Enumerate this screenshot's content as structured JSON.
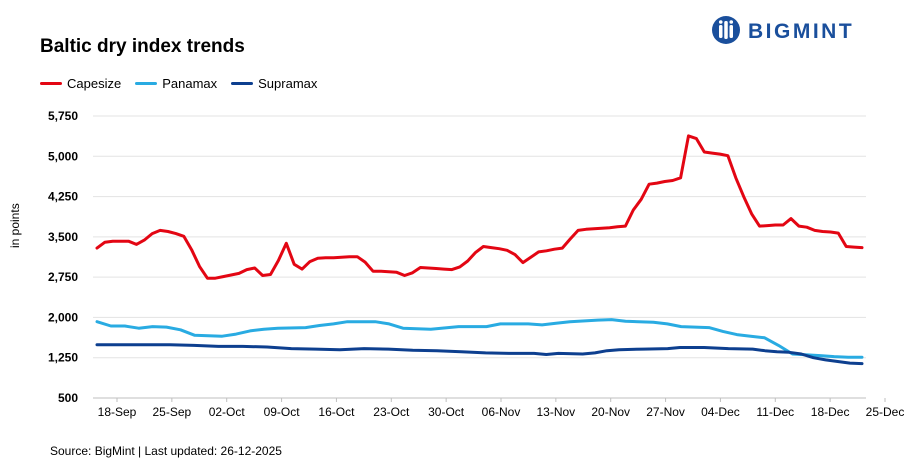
{
  "brand": {
    "name": "BIGMINT",
    "color": "#1a4f9c"
  },
  "source": "Source: BigMint | Last updated: 26-12-2025",
  "chart_data": {
    "type": "line",
    "title": "Baltic dry index trends",
    "ylabel": "in points",
    "xlabel": "",
    "ylim": [
      500,
      5750
    ],
    "yticks": [
      "5,750",
      "5,000",
      "4,250",
      "3,500",
      "2,750",
      "2,000",
      "1,250",
      "500"
    ],
    "ytick_values": [
      5750,
      5000,
      4250,
      3500,
      2750,
      2000,
      1250,
      500
    ],
    "xticks": [
      "18-Sep",
      "25-Sep",
      "02-Oct",
      "09-Oct",
      "16-Oct",
      "23-Oct",
      "30-Oct",
      "06-Nov",
      "13-Nov",
      "20-Nov",
      "27-Nov",
      "04-Dec",
      "11-Dec",
      "18-Dec",
      "25-Dec"
    ],
    "grid": true,
    "legend_position": "top-left",
    "series": [
      {
        "name": "Capesize",
        "color": "#e30613",
        "points": [
          [
            0,
            3290
          ],
          [
            1,
            3400
          ],
          [
            2,
            3420
          ],
          [
            3,
            3420
          ],
          [
            4,
            3420
          ],
          [
            5,
            3360
          ],
          [
            6,
            3440
          ],
          [
            7,
            3560
          ],
          [
            8,
            3620
          ],
          [
            9,
            3600
          ],
          [
            10,
            3560
          ],
          [
            11,
            3510
          ],
          [
            12,
            3260
          ],
          [
            13,
            2950
          ],
          [
            14,
            2730
          ],
          [
            15,
            2730
          ],
          [
            16,
            2760
          ],
          [
            17,
            2790
          ],
          [
            18,
            2820
          ],
          [
            19,
            2890
          ],
          [
            20,
            2920
          ],
          [
            21,
            2780
          ],
          [
            22,
            2800
          ],
          [
            23,
            3060
          ],
          [
            24,
            3380
          ],
          [
            25,
            2990
          ],
          [
            26,
            2900
          ],
          [
            27,
            3040
          ],
          [
            28,
            3100
          ],
          [
            29,
            3110
          ],
          [
            30,
            3110
          ],
          [
            31,
            3120
          ],
          [
            32,
            3130
          ],
          [
            33,
            3130
          ],
          [
            34,
            3030
          ],
          [
            35,
            2860
          ],
          [
            36,
            2860
          ],
          [
            37,
            2850
          ],
          [
            38,
            2840
          ],
          [
            39,
            2780
          ],
          [
            40,
            2830
          ],
          [
            41,
            2930
          ],
          [
            42,
            2920
          ],
          [
            43,
            2910
          ],
          [
            44,
            2900
          ],
          [
            45,
            2890
          ],
          [
            46,
            2940
          ],
          [
            47,
            3050
          ],
          [
            48,
            3210
          ],
          [
            49,
            3320
          ],
          [
            50,
            3300
          ],
          [
            51,
            3280
          ],
          [
            52,
            3250
          ],
          [
            53,
            3170
          ],
          [
            54,
            3020
          ],
          [
            55,
            3120
          ],
          [
            56,
            3220
          ],
          [
            57,
            3240
          ],
          [
            58,
            3270
          ],
          [
            59,
            3290
          ],
          [
            60,
            3460
          ],
          [
            61,
            3620
          ],
          [
            62,
            3640
          ],
          [
            63,
            3650
          ],
          [
            64,
            3660
          ],
          [
            65,
            3670
          ],
          [
            66,
            3690
          ],
          [
            67,
            3700
          ],
          [
            68,
            4000
          ],
          [
            69,
            4200
          ],
          [
            70,
            4480
          ],
          [
            71,
            4500
          ],
          [
            72,
            4530
          ],
          [
            73,
            4550
          ],
          [
            74,
            4600
          ],
          [
            75,
            5380
          ],
          [
            76,
            5330
          ],
          [
            77,
            5080
          ],
          [
            78,
            5060
          ],
          [
            79,
            5040
          ],
          [
            80,
            5010
          ],
          [
            81,
            4600
          ],
          [
            82,
            4250
          ],
          [
            83,
            3930
          ],
          [
            84,
            3700
          ],
          [
            85,
            3710
          ],
          [
            86,
            3720
          ],
          [
            87,
            3720
          ],
          [
            88,
            3840
          ],
          [
            89,
            3700
          ],
          [
            90,
            3680
          ],
          [
            91,
            3620
          ],
          [
            92,
            3600
          ],
          [
            93,
            3590
          ],
          [
            94,
            3570
          ],
          [
            95,
            3320
          ],
          [
            96,
            3310
          ],
          [
            97,
            3300
          ]
        ]
      },
      {
        "name": "Panamax",
        "color": "#29abe2",
        "points": [
          [
            0,
            1920
          ],
          [
            2,
            1840
          ],
          [
            4,
            1840
          ],
          [
            6,
            1800
          ],
          [
            8,
            1830
          ],
          [
            10,
            1820
          ],
          [
            12,
            1770
          ],
          [
            14,
            1670
          ],
          [
            16,
            1660
          ],
          [
            18,
            1650
          ],
          [
            20,
            1690
          ],
          [
            22,
            1750
          ],
          [
            24,
            1780
          ],
          [
            26,
            1800
          ],
          [
            30,
            1810
          ],
          [
            32,
            1850
          ],
          [
            34,
            1880
          ],
          [
            36,
            1920
          ],
          [
            40,
            1920
          ],
          [
            42,
            1880
          ],
          [
            44,
            1800
          ],
          [
            48,
            1780
          ],
          [
            52,
            1830
          ],
          [
            56,
            1830
          ],
          [
            58,
            1880
          ],
          [
            62,
            1880
          ],
          [
            64,
            1860
          ],
          [
            66,
            1890
          ],
          [
            68,
            1920
          ],
          [
            72,
            1950
          ],
          [
            74,
            1960
          ],
          [
            76,
            1930
          ],
          [
            80,
            1910
          ],
          [
            82,
            1880
          ],
          [
            84,
            1830
          ],
          [
            88,
            1810
          ],
          [
            90,
            1740
          ],
          [
            92,
            1680
          ],
          [
            94,
            1650
          ],
          [
            96,
            1620
          ],
          [
            98,
            1480
          ],
          [
            100,
            1320
          ],
          [
            104,
            1290
          ],
          [
            106,
            1270
          ],
          [
            108,
            1260
          ],
          [
            110,
            1260
          ]
        ]
      },
      {
        "name": "Supramax",
        "color": "#0d3f8f",
        "points": [
          [
            0,
            1490
          ],
          [
            4,
            1490
          ],
          [
            12,
            1490
          ],
          [
            16,
            1480
          ],
          [
            20,
            1460
          ],
          [
            24,
            1460
          ],
          [
            28,
            1450
          ],
          [
            32,
            1420
          ],
          [
            36,
            1410
          ],
          [
            40,
            1400
          ],
          [
            44,
            1420
          ],
          [
            48,
            1410
          ],
          [
            52,
            1390
          ],
          [
            56,
            1380
          ],
          [
            60,
            1360
          ],
          [
            64,
            1340
          ],
          [
            68,
            1330
          ],
          [
            72,
            1330
          ],
          [
            74,
            1310
          ],
          [
            76,
            1330
          ],
          [
            80,
            1320
          ],
          [
            82,
            1340
          ],
          [
            84,
            1380
          ],
          [
            86,
            1400
          ],
          [
            90,
            1410
          ],
          [
            94,
            1420
          ],
          [
            96,
            1440
          ],
          [
            100,
            1440
          ],
          [
            104,
            1420
          ],
          [
            108,
            1410
          ],
          [
            110,
            1380
          ],
          [
            112,
            1360
          ],
          [
            114,
            1350
          ],
          [
            116,
            1320
          ],
          [
            118,
            1250
          ],
          [
            120,
            1210
          ],
          [
            122,
            1180
          ],
          [
            124,
            1150
          ],
          [
            126,
            1140
          ]
        ]
      }
    ]
  }
}
